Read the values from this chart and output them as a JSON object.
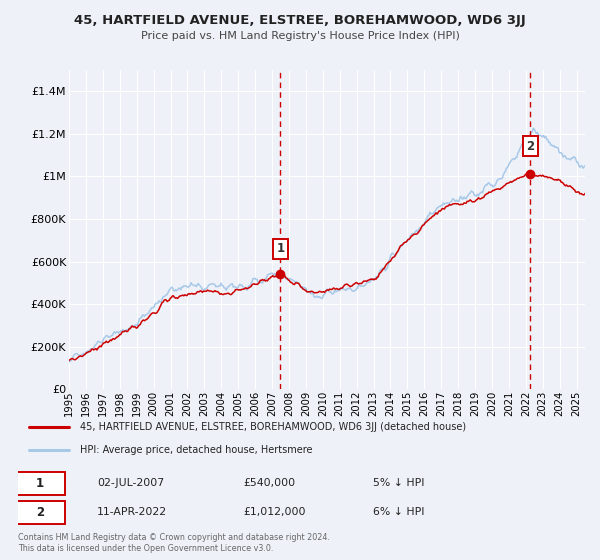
{
  "title": "45, HARTFIELD AVENUE, ELSTREE, BOREHAMWOOD, WD6 3JJ",
  "subtitle": "Price paid vs. HM Land Registry's House Price Index (HPI)",
  "xlim": [
    1995.0,
    2025.5
  ],
  "ylim": [
    0,
    1500000
  ],
  "yticks": [
    0,
    200000,
    400000,
    600000,
    800000,
    1000000,
    1200000,
    1400000
  ],
  "ytick_labels": [
    "£0",
    "£200K",
    "£400K",
    "£600K",
    "£800K",
    "£1M",
    "£1.2M",
    "£1.4M"
  ],
  "xticks": [
    1995,
    1996,
    1997,
    1998,
    1999,
    2000,
    2001,
    2002,
    2003,
    2004,
    2005,
    2006,
    2007,
    2008,
    2009,
    2010,
    2011,
    2012,
    2013,
    2014,
    2015,
    2016,
    2017,
    2018,
    2019,
    2020,
    2021,
    2022,
    2023,
    2024,
    2025
  ],
  "bg_color": "#eef2f8",
  "plot_bg_color": "#eef2f8",
  "grid_color": "white",
  "red_line_color": "#cc0000",
  "blue_line_color": "#a8c8e8",
  "marker1_x": 2007.5,
  "marker1_y": 540000,
  "marker2_x": 2022.27,
  "marker2_y": 1012000,
  "vline_color": "#cc0000",
  "sale1_date": "02-JUL-2007",
  "sale1_price": "£540,000",
  "sale1_hpi": "5% ↓ HPI",
  "sale2_date": "11-APR-2022",
  "sale2_price": "£1,012,000",
  "sale2_hpi": "6% ↓ HPI",
  "legend_label_red": "45, HARTFIELD AVENUE, ELSTREE, BOREHAMWOOD, WD6 3JJ (detached house)",
  "legend_label_blue": "HPI: Average price, detached house, Hertsmere",
  "footer": "Contains HM Land Registry data © Crown copyright and database right 2024.\nThis data is licensed under the Open Government Licence v3.0."
}
